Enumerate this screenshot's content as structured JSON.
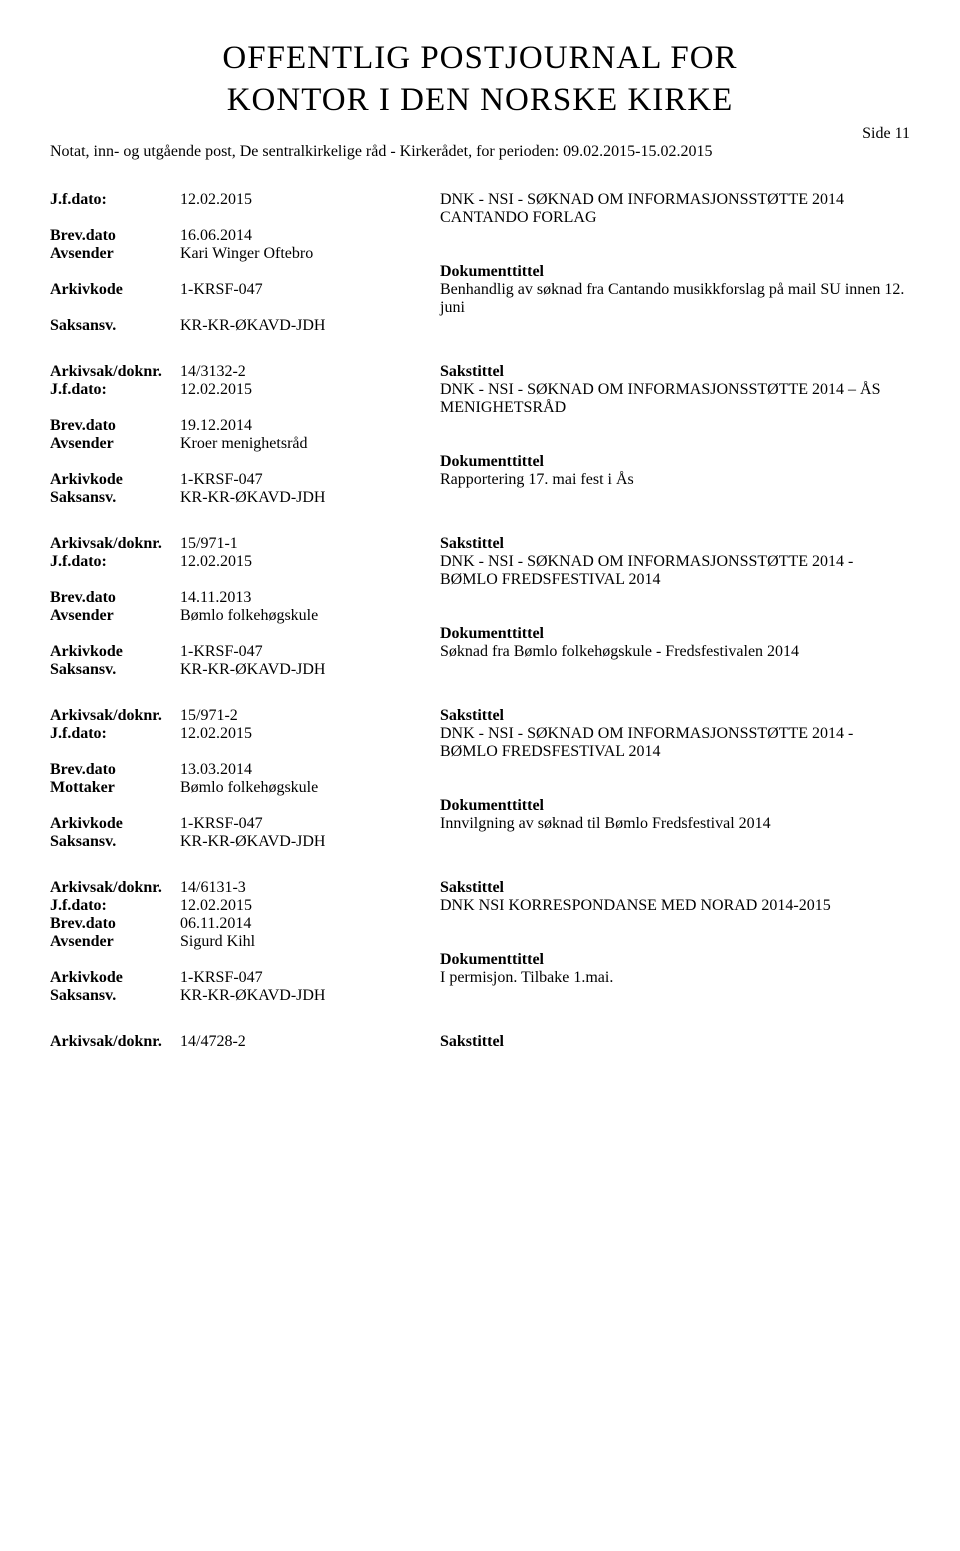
{
  "header": {
    "title_line1": "OFFENTLIG POSTJOURNAL FOR",
    "title_line2": "KONTOR I DEN NORSKE KIRKE",
    "side": "Side 11",
    "subhead": "Notat, inn- og utgående post, De sentralkirkelige råd - Kirkerådet, for perioden: 09.02.2015-15.02.2015"
  },
  "labels": {
    "arkivsak": "Arkivsak/doknr.",
    "jfdato": "J.f.dato:",
    "brevdato": "Brev.dato",
    "avsender": "Avsender",
    "mottaker": "Mottaker",
    "arkivkode": "Arkivkode",
    "saksansv": "Saksansv.",
    "sakstittel": "Sakstittel",
    "dokumenttittel": "Dokumenttittel"
  },
  "entries": [
    {
      "jfdato": "12.02.2015",
      "sakstittel": "DNK - NSI - SØKNAD OM INFORMASJONSSTØTTE 2014 CANTANDO FORLAG",
      "brevdato": "16.06.2014",
      "partylabel": "Avsender",
      "party": "Kari Winger Oftebro",
      "arkivkode": "1-KRSF-047",
      "saksansv": "KR-KR-ØKAVD-JDH",
      "doktekst": "Benhandlig av søknad fra Cantando musikkforslag på mail SU innen 12. juni"
    },
    {
      "arkivsak": "14/3132-2",
      "jfdato": "12.02.2015",
      "sakstittel": "DNK - NSI - SØKNAD OM INFORMASJONSSTØTTE 2014 – ÅS MENIGHETSRÅD",
      "brevdato": "19.12.2014",
      "partylabel": "Avsender",
      "party": "Kroer menighetsråd",
      "arkivkode": "1-KRSF-047",
      "saksansv": "KR-KR-ØKAVD-JDH",
      "doktekst": "Rapportering 17. mai fest i Ås"
    },
    {
      "arkivsak": "15/971-1",
      "jfdato": "12.02.2015",
      "sakstittel": "DNK - NSI - SØKNAD OM INFORMASJONSSTØTTE 2014 - BØMLO FREDSFESTIVAL 2014",
      "brevdato": "14.11.2013",
      "partylabel": "Avsender",
      "party": "Bømlo folkehøgskule",
      "arkivkode": "1-KRSF-047",
      "saksansv": "KR-KR-ØKAVD-JDH",
      "doktekst": "Søknad fra Bømlo folkehøgskule - Fredsfestivalen 2014"
    },
    {
      "arkivsak": "15/971-2",
      "jfdato": "12.02.2015",
      "sakstittel": "DNK - NSI - SØKNAD OM INFORMASJONSSTØTTE 2014 - BØMLO FREDSFESTIVAL 2014",
      "brevdato": "13.03.2014",
      "partylabel": "Mottaker",
      "party": "Bømlo folkehøgskule",
      "arkivkode": "1-KRSF-047",
      "saksansv": "KR-KR-ØKAVD-JDH",
      "doktekst": "Innvilgning av søknad til  Bømlo Fredsfestival 2014"
    },
    {
      "arkivsak": "14/6131-3",
      "jfdato": "12.02.2015",
      "sakstittel": "DNK NSI KORRESPONDANSE MED NORAD 2014-2015",
      "brevdato": "06.11.2014",
      "partylabel": "Avsender",
      "party": "Sigurd Kihl",
      "arkivkode": "1-KRSF-047",
      "saksansv": "KR-KR-ØKAVD-JDH",
      "doktekst": "I permisjon. Tilbake 1.mai."
    },
    {
      "arkivsak": "14/4728-2"
    }
  ]
}
